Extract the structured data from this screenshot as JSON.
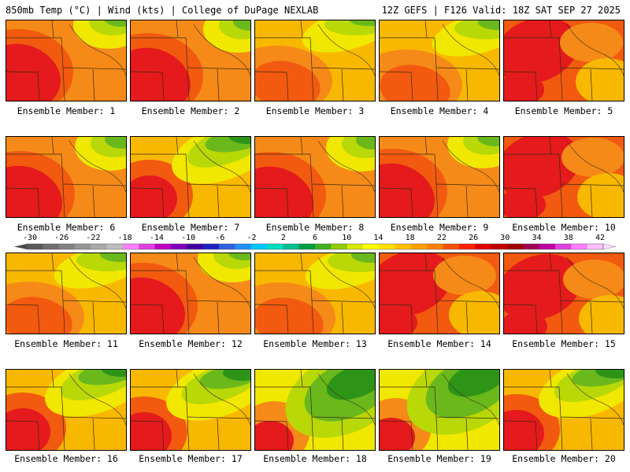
{
  "header": {
    "left": "850mb Temp (°C) | Wind (kts) | College of DuPage NEXLAB",
    "right": "12Z GEFS | F126 Valid: 18Z SAT SEP 27 2025"
  },
  "members": [
    {
      "label": "Ensemble Member: 1",
      "style": "hot-sw"
    },
    {
      "label": "Ensemble Member: 2",
      "style": "hot-sw"
    },
    {
      "label": "Ensemble Member: 3",
      "style": "warm"
    },
    {
      "label": "Ensemble Member: 4",
      "style": "warm"
    },
    {
      "label": "Ensemble Member: 5",
      "style": "hot-all"
    },
    {
      "label": "Ensemble Member: 6",
      "style": "hot-sw"
    },
    {
      "label": "Ensemble Member: 7",
      "style": "warm-green"
    },
    {
      "label": "Ensemble Member: 8",
      "style": "hot-sw"
    },
    {
      "label": "Ensemble Member: 9",
      "style": "hot-sw"
    },
    {
      "label": "Ensemble Member: 10",
      "style": "hot-all"
    },
    {
      "label": "Ensemble Member: 11",
      "style": "warm"
    },
    {
      "label": "Ensemble Member: 12",
      "style": "hot-sw"
    },
    {
      "label": "Ensemble Member: 13",
      "style": "warm"
    },
    {
      "label": "Ensemble Member: 14",
      "style": "hot-all"
    },
    {
      "label": "Ensemble Member: 15",
      "style": "hot-all"
    },
    {
      "label": "Ensemble Member: 16",
      "style": "warm-green"
    },
    {
      "label": "Ensemble Member: 17",
      "style": "warm-green"
    },
    {
      "label": "Ensemble Member: 18",
      "style": "cool"
    },
    {
      "label": "Ensemble Member: 19",
      "style": "cool"
    },
    {
      "label": "Ensemble Member: 20",
      "style": "warm-green"
    }
  ],
  "colorbar": {
    "ticks": [
      "-30",
      "-26",
      "-22",
      "-18",
      "-14",
      "-10",
      "-6",
      "-2",
      "2",
      "6",
      "10",
      "14",
      "18",
      "22",
      "26",
      "30",
      "34",
      "38",
      "42"
    ],
    "colors": [
      "#5a5a5a",
      "#6e6e6e",
      "#828282",
      "#969696",
      "#aaaaaa",
      "#bebebe",
      "#ff80ff",
      "#e040e0",
      "#c000c0",
      "#8000c0",
      "#4000a0",
      "#2020c0",
      "#3060e0",
      "#2090ff",
      "#00c8ff",
      "#00e0c0",
      "#00c090",
      "#00a040",
      "#40b020",
      "#90cc00",
      "#d8e800",
      "#ffff00",
      "#ffe000",
      "#ffc000",
      "#ffa000",
      "#ff8000",
      "#ff5000",
      "#ff2000",
      "#e00000",
      "#c00000",
      "#a00000",
      "#a00050",
      "#c000a0",
      "#e040e0",
      "#ff80ff",
      "#ffc0ff"
    ]
  },
  "palette": {
    "red": "#e41a1c",
    "darkorange": "#f25a10",
    "orange": "#f58a18",
    "yelloworange": "#f8b800",
    "yellow": "#f0e800",
    "lime": "#b8d808",
    "green": "#6ab81c",
    "darkgreen": "#2e9418"
  }
}
